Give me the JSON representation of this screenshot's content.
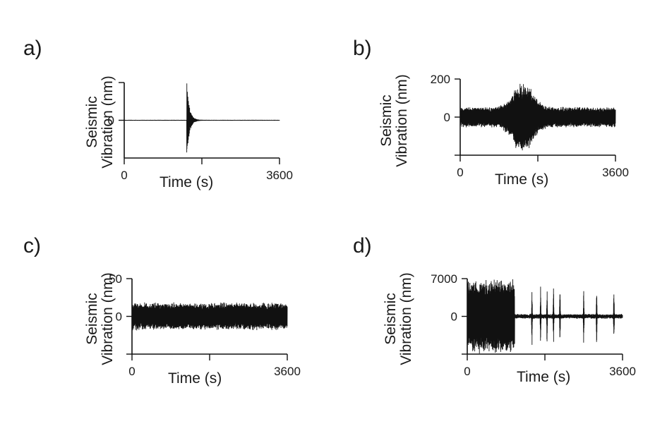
{
  "chart_data": [
    {
      "type": "line",
      "panel_label": "a)",
      "xlabel": "Time (s)",
      "ylabel_lines": [
        "Seismic",
        "Vibration (nm)"
      ],
      "xlim": [
        0,
        3600
      ],
      "x_ticks": [
        "0",
        "3600"
      ],
      "y_ticks": [
        "0"
      ],
      "ylim": [
        -1,
        1
      ],
      "pattern": "transient",
      "event_time": 1450,
      "noise_amplitude": 0.01,
      "peak_amplitude": 1.0,
      "color": "#111111"
    },
    {
      "type": "line",
      "panel_label": "b)",
      "xlabel": "Time (s)",
      "ylabel_lines": [
        "Seismic",
        "Vibration (nm)"
      ],
      "xlim": [
        0,
        3600
      ],
      "x_ticks": [
        "0",
        "3600"
      ],
      "y_ticks": [
        "200",
        "0"
      ],
      "ylim": [
        -200,
        200
      ],
      "pattern": "swell",
      "base_amplitude": 50,
      "peak_amplitude": 190,
      "peak_time": 1450,
      "color": "#111111"
    },
    {
      "type": "line",
      "panel_label": "c)",
      "xlabel": "Time (s)",
      "ylabel_lines": [
        "Seismic",
        "Vibration (nm)"
      ],
      "xlim": [
        0,
        3600
      ],
      "x_ticks": [
        "0",
        "3600"
      ],
      "y_ticks": [
        "50",
        "0"
      ],
      "ylim": [
        -50,
        50
      ],
      "pattern": "steady_noise",
      "base_amplitude": 17,
      "color": "#111111"
    },
    {
      "type": "line",
      "panel_label": "d)",
      "xlabel": "Time (s)",
      "ylabel_lines": [
        "Seismic",
        "Vibration (nm)"
      ],
      "xlim": [
        0,
        3600
      ],
      "x_ticks": [
        "0",
        "3600"
      ],
      "y_ticks": [
        "7000",
        "0"
      ],
      "ylim": [
        -7000,
        7000
      ],
      "pattern": "bursts",
      "burst_end_time": 1100,
      "burst_amplitude": 7000,
      "base_amplitude": 400,
      "spike_times": [
        1500,
        1700,
        1850,
        2000,
        2150,
        2700,
        3000,
        3400
      ],
      "spike_amplitude": 6500,
      "color": "#111111"
    }
  ]
}
